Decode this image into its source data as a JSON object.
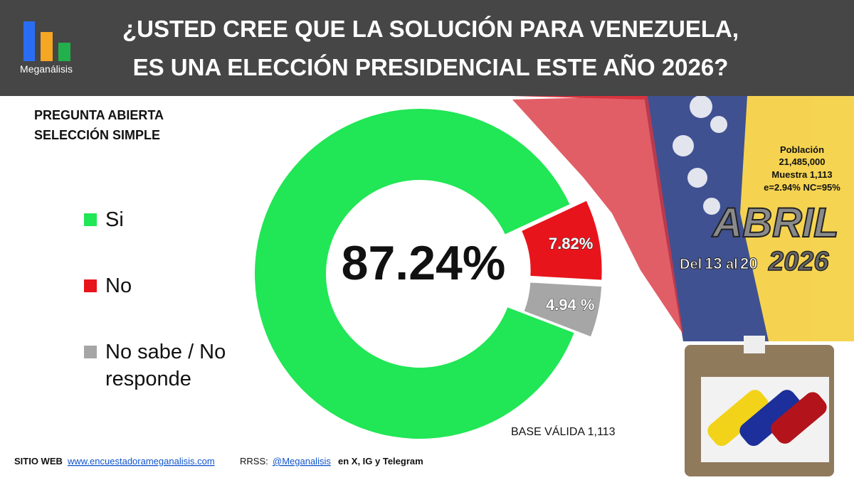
{
  "chart_data": {
    "type": "pie",
    "title": [
      "¿USTED CREE QUE LA SOLUCIÓN PARA VENEZUELA,",
      "ES UNA ELECCIÓN PRESIDENCIAL ESTE AÑO 2026?"
    ],
    "subtitle": [
      "PREGUNTA  ABIERTA",
      "SELECCIÓN SIMPLE"
    ],
    "categories": [
      "Si",
      "No",
      "No sabe / No responde"
    ],
    "values": [
      87.24,
      7.82,
      4.94
    ],
    "value_labels": [
      "87.24%",
      "7.82%",
      "4.94 %"
    ],
    "colors": [
      "#21e655",
      "#e8141b",
      "#a6a6a6"
    ],
    "annotation": "BASE VÁLIDA 1,113"
  },
  "logo": "Meganálisis",
  "info": [
    "Población",
    "21,485,000",
    "Muestra 1,113",
    "e=2.94%  NC=95%"
  ],
  "date": {
    "month": "ABRIL",
    "from_word": "Del",
    "from": "13",
    "to_word": "al",
    "to": "20",
    "year": "2026"
  },
  "footer": {
    "web_label": "SITIO WEB",
    "web": "www.encuestadorameganalisis.com",
    "rrss_label": "RRSS:",
    "handle": "@Meganalisis",
    "networks": "en X, IG y Telegram"
  }
}
